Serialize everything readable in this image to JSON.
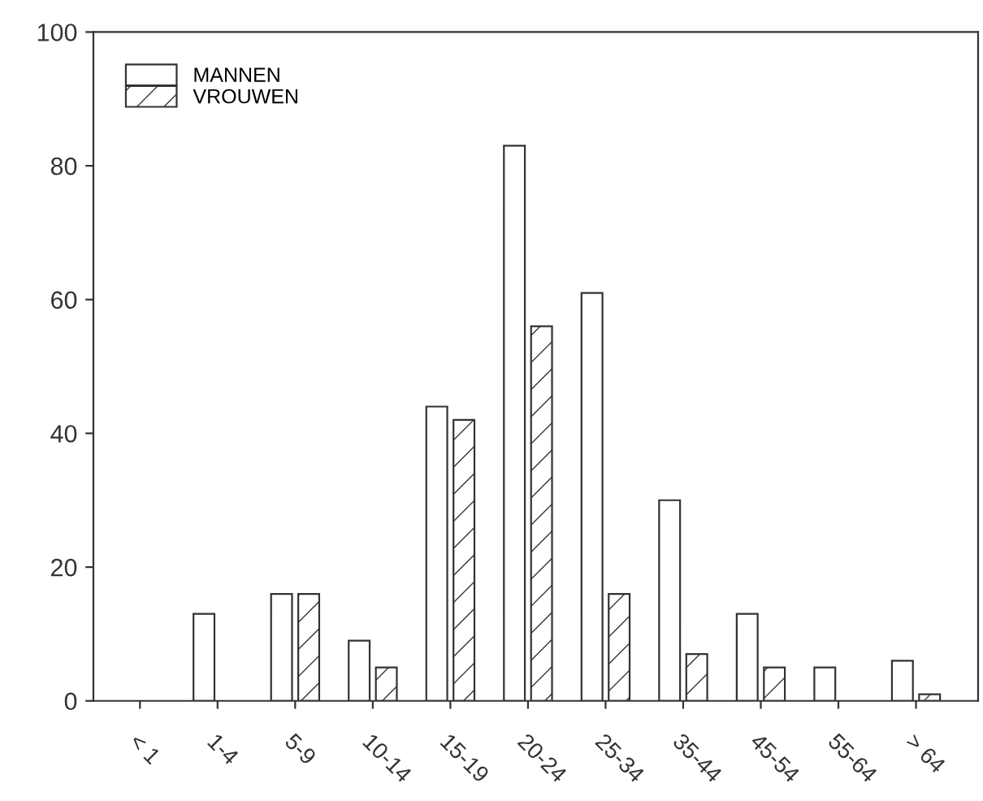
{
  "chart_data": {
    "type": "bar",
    "categories": [
      "< 1",
      "1-4",
      "5-9",
      "10-14",
      "15-19",
      "20-24",
      "25-34",
      "35-44",
      "45-54",
      "55-64",
      "> 64"
    ],
    "series": [
      {
        "name": "MANNEN",
        "color": "#ffffff",
        "values": [
          0,
          13,
          16,
          9,
          44,
          83,
          61,
          30,
          13,
          5,
          6
        ]
      },
      {
        "name": "VROUWEN",
        "color": "#333333",
        "values": [
          0,
          0,
          16,
          5,
          42,
          56,
          16,
          7,
          5,
          0,
          1
        ]
      }
    ],
    "ylim": [
      0,
      100
    ],
    "yticks": [
      0,
      20,
      40,
      60,
      80,
      100
    ],
    "grid": false,
    "legend": "top left"
  }
}
